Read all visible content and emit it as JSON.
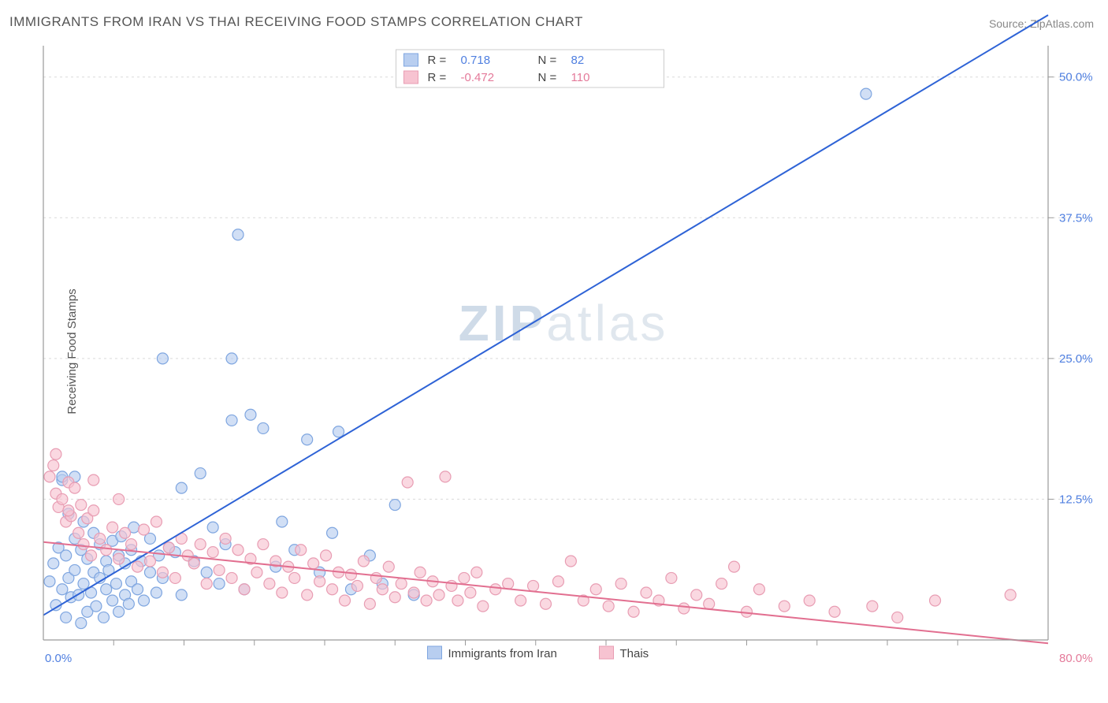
{
  "title": "IMMIGRANTS FROM IRAN VS THAI RECEIVING FOOD STAMPS CORRELATION CHART",
  "source_label": "Source: ZipAtlas.com",
  "ylabel": "Receiving Food Stamps",
  "watermark_zip": "ZIP",
  "watermark_atlas": "atlas",
  "chart": {
    "type": "scatter+regression",
    "xlim": [
      0,
      80
    ],
    "ylim": [
      0,
      52.5
    ],
    "x_origin_label": "0.0%",
    "x_end_label": "80.0%",
    "y_ticks": [
      12.5,
      25.0,
      37.5,
      50.0
    ],
    "y_tick_labels": [
      "12.5%",
      "25.0%",
      "37.5%",
      "50.0%"
    ],
    "x_minor_ticks": [
      5.6,
      11.2,
      16.8,
      22.4,
      28.0,
      33.6,
      39.2,
      44.8,
      50.4,
      56.0,
      61.6,
      67.2,
      72.8
    ],
    "grid_color": "#dadada",
    "axis_color": "#9a9a9a",
    "tick_label_color_blue": "#4f7fe0",
    "tick_label_color_pink": "#e47a9a",
    "background_color": "#ffffff",
    "point_radius": 7,
    "series": [
      {
        "name": "Immigrants from Iran",
        "legend_label": "Immigrants from Iran",
        "color_fill": "#b8cef0",
        "color_stroke": "#7fa6e0",
        "fill_opacity": 0.65,
        "line_color": "#2e63d6",
        "line_width": 2,
        "R": 0.718,
        "N": 82,
        "regression": {
          "x1": 0,
          "y1": 2.2,
          "x2": 80,
          "y2": 55.5
        },
        "points": [
          [
            0.5,
            5.2
          ],
          [
            0.8,
            6.8
          ],
          [
            1.0,
            3.1
          ],
          [
            1.2,
            8.2
          ],
          [
            1.5,
            4.5
          ],
          [
            1.5,
            14.2
          ],
          [
            1.8,
            2.0
          ],
          [
            1.8,
            7.5
          ],
          [
            2.0,
            5.5
          ],
          [
            2.0,
            11.2
          ],
          [
            2.2,
            3.8
          ],
          [
            2.5,
            9.0
          ],
          [
            2.5,
            6.2
          ],
          [
            2.8,
            4.0
          ],
          [
            3.0,
            1.5
          ],
          [
            3.0,
            8.0
          ],
          [
            3.2,
            10.5
          ],
          [
            3.2,
            5.0
          ],
          [
            3.5,
            2.5
          ],
          [
            3.5,
            7.2
          ],
          [
            3.8,
            4.2
          ],
          [
            4.0,
            6.0
          ],
          [
            4.0,
            9.5
          ],
          [
            4.2,
            3.0
          ],
          [
            4.5,
            8.5
          ],
          [
            4.5,
            5.5
          ],
          [
            4.8,
            2.0
          ],
          [
            5.0,
            7.0
          ],
          [
            5.0,
            4.5
          ],
          [
            5.2,
            6.2
          ],
          [
            5.5,
            3.5
          ],
          [
            5.5,
            8.8
          ],
          [
            5.8,
            5.0
          ],
          [
            6.0,
            7.5
          ],
          [
            6.0,
            2.5
          ],
          [
            6.2,
            9.2
          ],
          [
            6.5,
            4.0
          ],
          [
            6.5,
            6.8
          ],
          [
            6.8,
            3.2
          ],
          [
            7.0,
            8.0
          ],
          [
            7.0,
            5.2
          ],
          [
            7.2,
            10.0
          ],
          [
            7.5,
            4.5
          ],
          [
            7.8,
            7.0
          ],
          [
            8.0,
            3.5
          ],
          [
            8.5,
            6.0
          ],
          [
            8.5,
            9.0
          ],
          [
            9.0,
            4.2
          ],
          [
            9.2,
            7.5
          ],
          [
            9.5,
            5.5
          ],
          [
            10.0,
            8.2
          ],
          [
            10.5,
            7.8
          ],
          [
            11.0,
            4.0
          ],
          [
            11.0,
            13.5
          ],
          [
            12.0,
            7.0
          ],
          [
            12.5,
            14.8
          ],
          [
            13.0,
            6.0
          ],
          [
            13.5,
            10.0
          ],
          [
            14.0,
            5.0
          ],
          [
            14.5,
            8.5
          ],
          [
            15.0,
            19.5
          ],
          [
            15.5,
            36.0
          ],
          [
            16.0,
            4.5
          ],
          [
            16.5,
            20.0
          ],
          [
            17.5,
            18.8
          ],
          [
            18.5,
            6.5
          ],
          [
            19.0,
            10.5
          ],
          [
            20.0,
            8.0
          ],
          [
            21.0,
            17.8
          ],
          [
            22.0,
            6.0
          ],
          [
            23.0,
            9.5
          ],
          [
            23.5,
            18.5
          ],
          [
            9.5,
            25.0
          ],
          [
            15.0,
            25.0
          ],
          [
            24.5,
            4.5
          ],
          [
            26.0,
            7.5
          ],
          [
            27.0,
            5.0
          ],
          [
            28.0,
            12.0
          ],
          [
            29.5,
            4.0
          ],
          [
            1.5,
            14.5
          ],
          [
            65.5,
            48.5
          ],
          [
            2.5,
            14.5
          ]
        ]
      },
      {
        "name": "Thais",
        "legend_label": "Thais",
        "color_fill": "#f7c3d1",
        "color_stroke": "#e89db3",
        "fill_opacity": 0.65,
        "line_color": "#e26f90",
        "line_width": 2,
        "R": -0.472,
        "N": 110,
        "regression": {
          "x1": 0,
          "y1": 8.7,
          "x2": 80,
          "y2": -0.3
        },
        "points": [
          [
            0.5,
            14.5
          ],
          [
            1.0,
            13.0
          ],
          [
            1.2,
            11.8
          ],
          [
            1.5,
            12.5
          ],
          [
            1.8,
            10.5
          ],
          [
            2.0,
            14.0
          ],
          [
            2.2,
            11.0
          ],
          [
            2.5,
            13.5
          ],
          [
            2.8,
            9.5
          ],
          [
            3.0,
            12.0
          ],
          [
            3.2,
            8.5
          ],
          [
            3.5,
            10.8
          ],
          [
            3.8,
            7.5
          ],
          [
            4.0,
            11.5
          ],
          [
            4.5,
            9.0
          ],
          [
            5.0,
            8.0
          ],
          [
            5.5,
            10.0
          ],
          [
            6.0,
            7.2
          ],
          [
            6.5,
            9.5
          ],
          [
            7.0,
            8.5
          ],
          [
            7.5,
            6.5
          ],
          [
            8.0,
            9.8
          ],
          [
            8.5,
            7.0
          ],
          [
            9.0,
            10.5
          ],
          [
            9.5,
            6.0
          ],
          [
            10.0,
            8.2
          ],
          [
            10.5,
            5.5
          ],
          [
            11.0,
            9.0
          ],
          [
            11.5,
            7.5
          ],
          [
            12.0,
            6.8
          ],
          [
            12.5,
            8.5
          ],
          [
            13.0,
            5.0
          ],
          [
            13.5,
            7.8
          ],
          [
            14.0,
            6.2
          ],
          [
            14.5,
            9.0
          ],
          [
            15.0,
            5.5
          ],
          [
            15.5,
            8.0
          ],
          [
            16.0,
            4.5
          ],
          [
            16.5,
            7.2
          ],
          [
            17.0,
            6.0
          ],
          [
            17.5,
            8.5
          ],
          [
            18.0,
            5.0
          ],
          [
            18.5,
            7.0
          ],
          [
            19.0,
            4.2
          ],
          [
            19.5,
            6.5
          ],
          [
            20.0,
            5.5
          ],
          [
            20.5,
            8.0
          ],
          [
            21.0,
            4.0
          ],
          [
            21.5,
            6.8
          ],
          [
            22.0,
            5.2
          ],
          [
            22.5,
            7.5
          ],
          [
            23.0,
            4.5
          ],
          [
            23.5,
            6.0
          ],
          [
            24.0,
            3.5
          ],
          [
            24.5,
            5.8
          ],
          [
            25.0,
            4.8
          ],
          [
            25.5,
            7.0
          ],
          [
            26.0,
            3.2
          ],
          [
            26.5,
            5.5
          ],
          [
            27.0,
            4.5
          ],
          [
            27.5,
            6.5
          ],
          [
            28.0,
            3.8
          ],
          [
            28.5,
            5.0
          ],
          [
            29.0,
            14.0
          ],
          [
            29.5,
            4.2
          ],
          [
            30.0,
            6.0
          ],
          [
            30.5,
            3.5
          ],
          [
            31.0,
            5.2
          ],
          [
            31.5,
            4.0
          ],
          [
            32.0,
            14.5
          ],
          [
            32.5,
            4.8
          ],
          [
            33.0,
            3.5
          ],
          [
            33.5,
            5.5
          ],
          [
            34.0,
            4.2
          ],
          [
            34.5,
            6.0
          ],
          [
            35.0,
            3.0
          ],
          [
            36.0,
            4.5
          ],
          [
            37.0,
            5.0
          ],
          [
            38.0,
            3.5
          ],
          [
            39.0,
            4.8
          ],
          [
            40.0,
            3.2
          ],
          [
            41.0,
            5.2
          ],
          [
            42.0,
            7.0
          ],
          [
            43.0,
            3.5
          ],
          [
            44.0,
            4.5
          ],
          [
            45.0,
            3.0
          ],
          [
            46.0,
            5.0
          ],
          [
            47.0,
            2.5
          ],
          [
            48.0,
            4.2
          ],
          [
            49.0,
            3.5
          ],
          [
            50.0,
            5.5
          ],
          [
            51.0,
            2.8
          ],
          [
            52.0,
            4.0
          ],
          [
            53.0,
            3.2
          ],
          [
            54.0,
            5.0
          ],
          [
            55.0,
            6.5
          ],
          [
            56.0,
            2.5
          ],
          [
            57.0,
            4.5
          ],
          [
            59.0,
            3.0
          ],
          [
            61.0,
            3.5
          ],
          [
            63.0,
            2.5
          ],
          [
            66.0,
            3.0
          ],
          [
            68.0,
            2.0
          ],
          [
            71.0,
            3.5
          ],
          [
            1.0,
            16.5
          ],
          [
            0.8,
            15.5
          ],
          [
            2.0,
            11.5
          ],
          [
            4.0,
            14.2
          ],
          [
            6.0,
            12.5
          ],
          [
            77.0,
            4.0
          ]
        ]
      }
    ],
    "legend_top": {
      "R_label": "R =",
      "N_label": "N ="
    },
    "legend_bottom": {
      "items": [
        {
          "label": "Immigrants from Iran",
          "fill": "#b8cef0",
          "stroke": "#7fa6e0"
        },
        {
          "label": "Thais",
          "fill": "#f7c3d1",
          "stroke": "#e89db3"
        }
      ]
    }
  }
}
